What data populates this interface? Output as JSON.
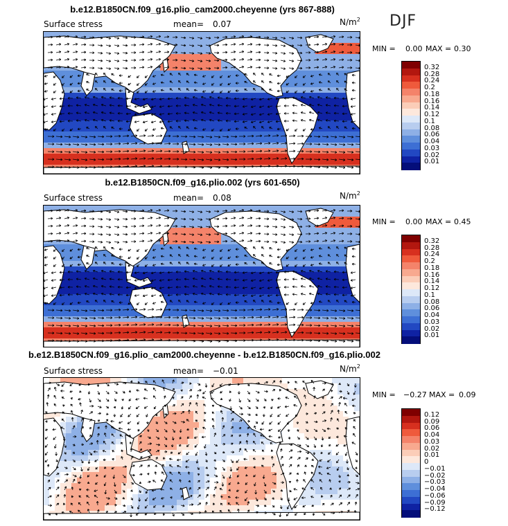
{
  "season": "DJF",
  "panels": [
    {
      "title": "b.e12.B1850CN.f09_g16.plio_cam2000.cheyenne (yrs 867-888)",
      "field_label": "Surface stress",
      "mean_label": "mean=",
      "mean_value": "0.07",
      "units": "N/m",
      "units_exp": "2",
      "min_label": "MIN =",
      "min_value": "0.00",
      "max_label": "MAX =",
      "max_value": "0.30",
      "colorbar_labels": [
        "0.32",
        "0.28",
        "0.24",
        "0.2",
        "0.18",
        "0.16",
        "0.14",
        "0.12",
        "0.1",
        "0.08",
        "0.06",
        "0.04",
        "0.03",
        "0.02",
        "0.01"
      ],
      "colorbar_colors": [
        "#7f0000",
        "#b2170f",
        "#d7301f",
        "#ef5a3c",
        "#f4836a",
        "#f8a98f",
        "#fbcdb8",
        "#fde8dc",
        "#dde8f8",
        "#b8cdef",
        "#8eb0e6",
        "#5f8fdc",
        "#3d6fd4",
        "#2248c2",
        "#0f22a3",
        "#040e7a"
      ],
      "map_style": "mean"
    },
    {
      "title": "b.e12.B1850CN.f09_g16.plio.002 (yrs 601-650)",
      "field_label": "Surface stress",
      "mean_label": "mean=",
      "mean_value": "0.08",
      "units": "N/m",
      "units_exp": "2",
      "min_label": "MIN =",
      "min_value": "0.00",
      "max_label": "MAX =",
      "max_value": "0.45",
      "colorbar_labels": [
        "0.32",
        "0.28",
        "0.24",
        "0.2",
        "0.18",
        "0.16",
        "0.14",
        "0.12",
        "0.1",
        "0.08",
        "0.06",
        "0.04",
        "0.03",
        "0.02",
        "0.01"
      ],
      "colorbar_colors": [
        "#7f0000",
        "#b2170f",
        "#d7301f",
        "#ef5a3c",
        "#f4836a",
        "#f8a98f",
        "#fbcdb8",
        "#fde8dc",
        "#dde8f8",
        "#b8cdef",
        "#8eb0e6",
        "#5f8fdc",
        "#3d6fd4",
        "#2248c2",
        "#0f22a3",
        "#040e7a"
      ],
      "map_style": "mean"
    },
    {
      "title": "b.e12.B1850CN.f09_g16.plio_cam2000.cheyenne - b.e12.B1850CN.f09_g16.plio.002",
      "field_label": "Surface stress",
      "mean_label": "mean=",
      "mean_value": "−0.01",
      "units": "N/m",
      "units_exp": "2",
      "min_label": "MIN =",
      "min_value": "−0.27",
      "max_label": "MAX =",
      "max_value": "0.09",
      "colorbar_labels": [
        "0.12",
        "0.09",
        "0.06",
        "0.04",
        "0.03",
        "0.02",
        "0.01",
        "0",
        "−0.01",
        "−0.02",
        "−0.03",
        "−0.04",
        "−0.06",
        "−0.09",
        "−0.12"
      ],
      "colorbar_colors": [
        "#7f0000",
        "#b2170f",
        "#d7301f",
        "#ef5a3c",
        "#f4836a",
        "#f8a98f",
        "#fbcdb8",
        "#fde8dc",
        "#dde8f8",
        "#b8cdef",
        "#8eb0e6",
        "#5f8fdc",
        "#3d6fd4",
        "#2248c2",
        "#0f22a3",
        "#040e7a"
      ],
      "map_style": "diff"
    }
  ]
}
